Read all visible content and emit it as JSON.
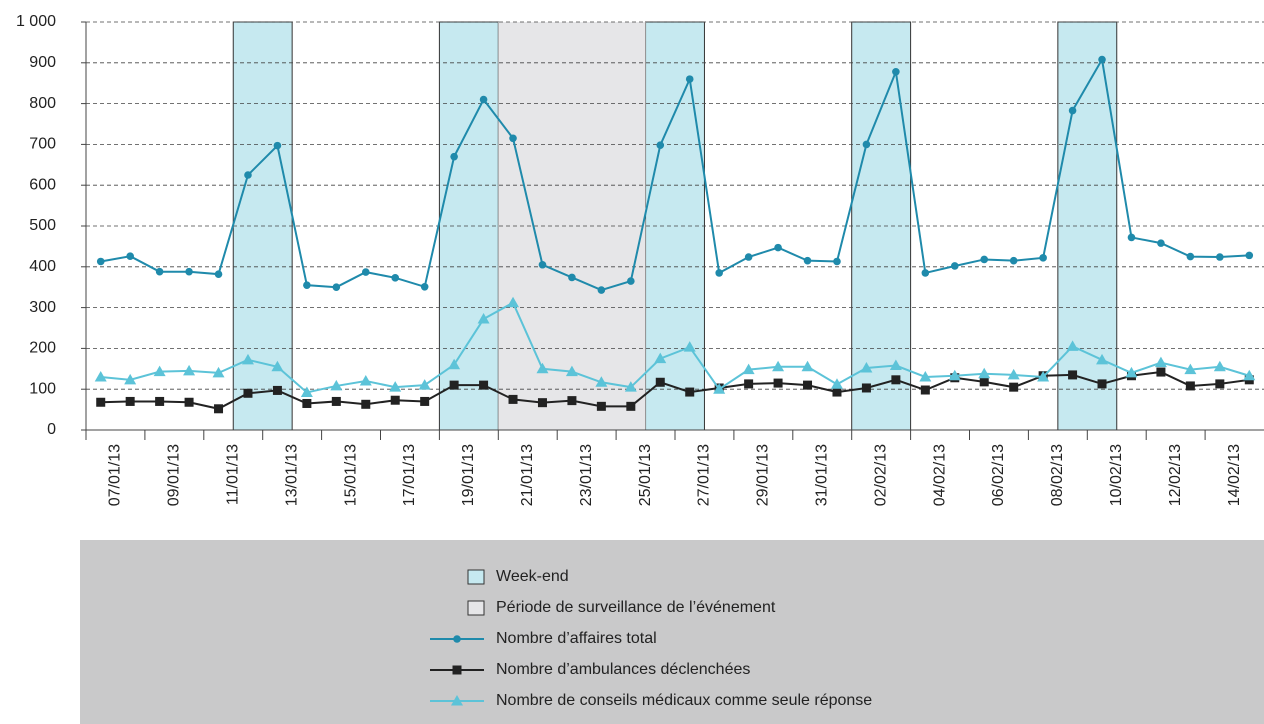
{
  "chart_data": {
    "type": "line",
    "categories": [
      "07/01/13",
      null,
      "09/01/13",
      null,
      "11/01/13",
      null,
      "13/01/13",
      null,
      "15/01/13",
      null,
      "17/01/13",
      null,
      "19/01/13",
      null,
      "21/01/13",
      null,
      "23/01/13",
      null,
      "25/01/13",
      null,
      "27/01/13",
      null,
      "29/01/13",
      null,
      "31/01/13",
      null,
      "02/02/13",
      null,
      "04/02/13",
      null,
      "06/02/13",
      null,
      "08/02/13",
      null,
      "10/02/13",
      null,
      "12/02/13",
      null,
      "14/02/13",
      null
    ],
    "bands": [
      {
        "name": "Week-end",
        "color": "#c6e9f0",
        "spans": [
          [
            5,
            6
          ],
          [
            12,
            13
          ],
          [
            19,
            20
          ],
          [
            26,
            27
          ],
          [
            33,
            34
          ]
        ]
      },
      {
        "name": "Période de surveillance de l’événement",
        "color": "#e6e6e8",
        "spans": [
          [
            14,
            18
          ]
        ]
      }
    ],
    "series": [
      {
        "name": "Nombre d’affaires total",
        "color": "#1f8aab",
        "marker": "circle",
        "values": [
          413,
          426,
          388,
          388,
          382,
          625,
          697,
          355,
          350,
          387,
          373,
          351,
          670,
          810,
          715,
          405,
          374,
          343,
          365,
          698,
          860,
          385,
          424,
          447,
          415,
          413,
          700,
          878,
          385,
          402,
          418,
          415,
          422,
          783,
          908,
          472,
          458,
          425,
          424,
          428
        ]
      },
      {
        "name": "Nombre d’ambulances déclenchées",
        "color": "#222222",
        "marker": "square",
        "values": [
          68,
          70,
          70,
          68,
          52,
          90,
          97,
          65,
          70,
          63,
          73,
          70,
          110,
          110,
          75,
          67,
          72,
          58,
          58,
          117,
          93,
          103,
          113,
          115,
          110,
          93,
          103,
          123,
          98,
          128,
          118,
          105,
          133,
          135,
          113,
          133,
          142,
          108,
          113,
          123
        ]
      },
      {
        "name": "Nombre de conseils médicaux comme seule réponse",
        "color": "#5cc3d8",
        "marker": "triangle",
        "values": [
          130,
          123,
          143,
          145,
          140,
          172,
          155,
          92,
          108,
          120,
          105,
          110,
          160,
          272,
          312,
          150,
          143,
          117,
          105,
          175,
          203,
          100,
          148,
          155,
          155,
          112,
          152,
          158,
          130,
          133,
          138,
          135,
          130,
          205,
          172,
          140,
          165,
          148,
          155,
          133
        ]
      }
    ],
    "ylim": [
      0,
      1000
    ],
    "yticks": [
      0,
      100,
      200,
      300,
      400,
      500,
      600,
      700,
      800,
      900,
      {
        "value": 1000,
        "label": "1 000"
      }
    ],
    "grid": true
  }
}
